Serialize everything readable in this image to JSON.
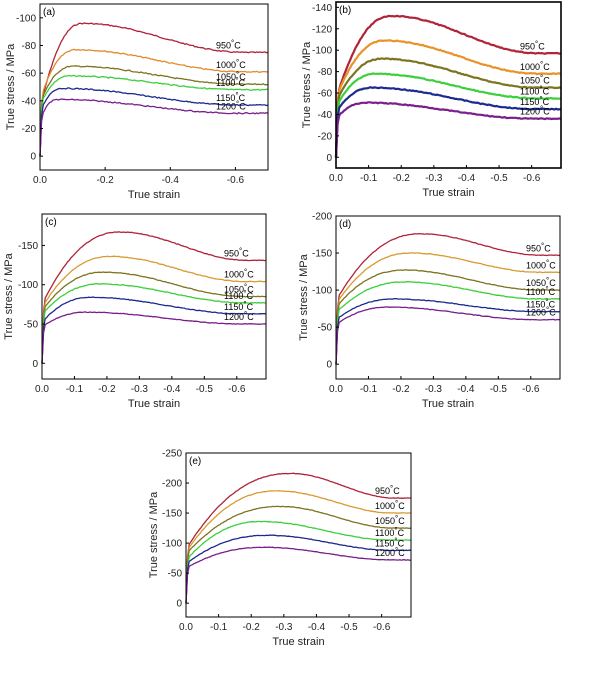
{
  "chart_data": [
    {
      "type": "line",
      "panel_label": "(a)",
      "xlabel": "True strain",
      "ylabel": "True stress / MPa",
      "xlim": [
        0.0,
        -0.7
      ],
      "ylim": [
        10,
        -110
      ],
      "x_ticks": [
        0.0,
        -0.2,
        -0.4,
        -0.6
      ],
      "x_tick_labels": [
        "0.0",
        "-0.2",
        "-0.4",
        "-0.6"
      ],
      "y_ticks": [
        0,
        -20,
        -40,
        -60,
        -80,
        -100
      ],
      "y_tick_labels": [
        "0",
        "-20",
        "-40",
        "-60",
        "-80",
        "-100"
      ],
      "series": [
        {
          "name": "950°C",
          "label_main": "950",
          "label_unit": "°C",
          "color": "#b02338",
          "start": -40,
          "peak": -96,
          "peak_strain": -0.13,
          "end": -75
        },
        {
          "name": "1000°C",
          "label_main": "1000",
          "label_unit": "°C",
          "color": "#e08a2c",
          "start": -45,
          "peak": -77,
          "peak_strain": -0.11,
          "end": -61
        },
        {
          "name": "1050°C",
          "label_main": "1050",
          "label_unit": "°C",
          "color": "#7d7420",
          "start": -42,
          "peak": -65,
          "peak_strain": -0.1,
          "end": -52
        },
        {
          "name": "1100°C",
          "label_main": "1100",
          "label_unit": "°C",
          "color": "#3ccf3c",
          "start": -40,
          "peak": -58,
          "peak_strain": -0.09,
          "end": -48
        },
        {
          "name": "1150°C",
          "label_main": "1150",
          "label_unit": "°C",
          "color": "#1c2a8e",
          "start": -35,
          "peak": -49,
          "peak_strain": -0.065,
          "end": -37
        },
        {
          "name": "1200°C",
          "label_main": "1200",
          "label_unit": "°C",
          "color": "#7a1e8c",
          "start": -30,
          "peak": -41,
          "peak_strain": -0.055,
          "end": -31
        }
      ]
    },
    {
      "type": "line",
      "panel_label": "(b)",
      "xlabel": "True strain",
      "ylabel": "True stress / MPa",
      "xlim": [
        0.0,
        -0.69
      ],
      "ylim": [
        10,
        -145
      ],
      "x_ticks": [
        0.0,
        -0.1,
        -0.2,
        -0.3,
        -0.4,
        -0.5,
        -0.6
      ],
      "x_tick_labels": [
        "0.0",
        "-0.1",
        "-0.2",
        "-0.3",
        "-0.4",
        "-0.5",
        "-0.6"
      ],
      "y_ticks": [
        0,
        -20,
        -40,
        -60,
        -80,
        -100,
        -120,
        -140
      ],
      "y_tick_labels": [
        "0",
        "-20",
        "-40",
        "-60",
        "-80",
        "-100",
        "-120",
        "-140"
      ],
      "series": [
        {
          "name": "950°C",
          "label_main": "950",
          "label_unit": "°C",
          "color": "#b02338",
          "start": -60,
          "peak": -132,
          "peak_strain": -0.17,
          "end": -97
        },
        {
          "name": "1000°C",
          "label_main": "1000",
          "label_unit": "°C",
          "color": "#e8922a",
          "start": -60,
          "peak": -109,
          "peak_strain": -0.15,
          "end": -78
        },
        {
          "name": "1050°C",
          "label_main": "1050",
          "label_unit": "°C",
          "color": "#7d7420",
          "start": -55,
          "peak": -92,
          "peak_strain": -0.14,
          "end": -65
        },
        {
          "name": "1100°C",
          "label_main": "1100",
          "label_unit": "°C",
          "color": "#3ccf3c",
          "start": -50,
          "peak": -78,
          "peak_strain": -0.12,
          "end": -55
        },
        {
          "name": "1150°C",
          "label_main": "1150",
          "label_unit": "°C",
          "color": "#1c2a8e",
          "start": -45,
          "peak": -65,
          "peak_strain": -0.11,
          "end": -45
        },
        {
          "name": "1200°C",
          "label_main": "1200",
          "label_unit": "°C",
          "color": "#7a1e8c",
          "start": -38,
          "peak": -51,
          "peak_strain": -0.09,
          "end": -36
        }
      ]
    },
    {
      "type": "line",
      "panel_label": "(c)",
      "xlabel": "True strain",
      "ylabel": "True stress / MPa",
      "xlim": [
        0.0,
        -0.69
      ],
      "ylim": [
        20,
        -190
      ],
      "x_ticks": [
        0.0,
        -0.1,
        -0.2,
        -0.3,
        -0.4,
        -0.5,
        -0.6
      ],
      "x_tick_labels": [
        "0.0",
        "-0.1",
        "-0.2",
        "-0.3",
        "-0.4",
        "-0.5",
        "-0.6"
      ],
      "y_ticks": [
        0,
        -50,
        -100,
        -150
      ],
      "y_tick_labels": [
        "0",
        "-50",
        "-100",
        "-150"
      ],
      "series": [
        {
          "name": "950°C",
          "label_main": "950",
          "label_unit": "°C",
          "color": "#b02338",
          "start": -80,
          "peak": -167,
          "peak_strain": -0.24,
          "end": -131
        },
        {
          "name": "1000°C",
          "label_main": "1000",
          "label_unit": "°C",
          "color": "#d99a30",
          "start": -75,
          "peak": -136,
          "peak_strain": -0.21,
          "end": -104
        },
        {
          "name": "1050°C",
          "label_main": "1050",
          "label_unit": "°C",
          "color": "#7d7420",
          "start": -70,
          "peak": -116,
          "peak_strain": -0.19,
          "end": -85
        },
        {
          "name": "1100°C",
          "label_main": "1100",
          "label_unit": "°C",
          "color": "#3ccf3c",
          "start": -65,
          "peak": -101,
          "peak_strain": -0.18,
          "end": -77
        },
        {
          "name": "1150°C",
          "label_main": "1150",
          "label_unit": "°C",
          "color": "#1c2a8e",
          "start": -55,
          "peak": -84,
          "peak_strain": -0.15,
          "end": -63
        },
        {
          "name": "1200°C",
          "label_main": "1200",
          "label_unit": "°C",
          "color": "#7a1e8c",
          "start": -48,
          "peak": -65,
          "peak_strain": -0.14,
          "end": -50
        }
      ]
    },
    {
      "type": "line",
      "panel_label": "(d)",
      "xlabel": "True strain",
      "ylabel": "True stress / MPa",
      "xlim": [
        0.0,
        -0.69
      ],
      "ylim": [
        20,
        -200
      ],
      "x_ticks": [
        0.0,
        -0.1,
        -0.2,
        -0.3,
        -0.4,
        -0.5,
        -0.6
      ],
      "x_tick_labels": [
        "0.0",
        "-0.1",
        "-0.2",
        "-0.3",
        "-0.4",
        "-0.5",
        "-0.6"
      ],
      "y_ticks": [
        0,
        -50,
        -100,
        -150,
        -200
      ],
      "y_tick_labels": [
        "0",
        "-50",
        "-100",
        "-150",
        "-200"
      ],
      "series": [
        {
          "name": "950°C",
          "label_main": "950",
          "label_unit": "°C",
          "color": "#b02338",
          "start": -90,
          "peak": -176,
          "peak_strain": -0.26,
          "end": -147
        },
        {
          "name": "1000°C",
          "label_main": "1000",
          "label_unit": "°C",
          "color": "#d99a30",
          "start": -85,
          "peak": -150,
          "peak_strain": -0.23,
          "end": -124
        },
        {
          "name": "1050°C",
          "label_main": "1050",
          "label_unit": "°C",
          "color": "#7d7420",
          "start": -80,
          "peak": -127,
          "peak_strain": -0.21,
          "end": -100
        },
        {
          "name": "1100°C",
          "label_main": "1100",
          "label_unit": "°C",
          "color": "#3ccf3c",
          "start": -72,
          "peak": -111,
          "peak_strain": -0.21,
          "end": -88
        },
        {
          "name": "1150°C",
          "label_main": "1150",
          "label_unit": "°C",
          "color": "#1c2a8e",
          "start": -62,
          "peak": -88,
          "peak_strain": -0.18,
          "end": -71
        },
        {
          "name": "1200°C",
          "label_main": "1200",
          "label_unit": "°C",
          "color": "#7a1e8c",
          "start": -55,
          "peak": -77,
          "peak_strain": -0.16,
          "end": -60
        }
      ]
    },
    {
      "type": "line",
      "panel_label": "(e)",
      "xlabel": "True strain",
      "ylabel": "True stress / MPa",
      "xlim": [
        0.0,
        -0.69
      ],
      "ylim": [
        23,
        -250
      ],
      "x_ticks": [
        0.0,
        -0.1,
        -0.2,
        -0.3,
        -0.4,
        -0.5,
        -0.6
      ],
      "x_tick_labels": [
        "0.0",
        "-0.1",
        "-0.2",
        "-0.3",
        "-0.4",
        "-0.5",
        "-0.6"
      ],
      "y_ticks": [
        0,
        -50,
        -100,
        -150,
        -200,
        -250
      ],
      "y_tick_labels": [
        "0",
        "-50",
        "-100",
        "-150",
        "-200",
        "-250"
      ],
      "series": [
        {
          "name": "950°C",
          "label_main": "950",
          "label_unit": "°C",
          "color": "#b02338",
          "start": -95,
          "peak": -216,
          "peak_strain": -0.32,
          "end": -175
        },
        {
          "name": "1000°C",
          "label_main": "1000",
          "label_unit": "°C",
          "color": "#d99a30",
          "start": -90,
          "peak": -187,
          "peak_strain": -0.28,
          "end": -150
        },
        {
          "name": "1050°C",
          "label_main": "1050",
          "label_unit": "°C",
          "color": "#7d7420",
          "start": -85,
          "peak": -161,
          "peak_strain": -0.29,
          "end": -125
        },
        {
          "name": "1100°C",
          "label_main": "1100",
          "label_unit": "°C",
          "color": "#3ccf3c",
          "start": -75,
          "peak": -136,
          "peak_strain": -0.23,
          "end": -105
        },
        {
          "name": "1150°C",
          "label_main": "1150",
          "label_unit": "°C",
          "color": "#1c2a8e",
          "start": -68,
          "peak": -113,
          "peak_strain": -0.25,
          "end": -88
        },
        {
          "name": "1200°C",
          "label_main": "1200",
          "label_unit": "°C",
          "color": "#7a1e8c",
          "start": -60,
          "peak": -93,
          "peak_strain": -0.24,
          "end": -72
        }
      ]
    }
  ]
}
